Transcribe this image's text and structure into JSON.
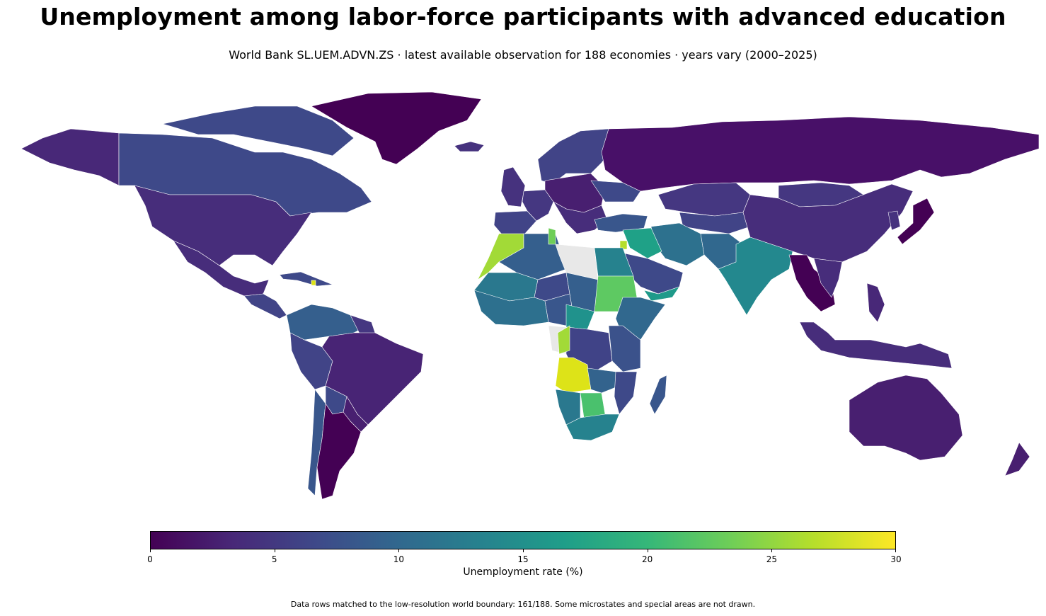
{
  "title": "Unemployment among labor-force participants with advanced education",
  "subtitle": "World Bank SL.UEM.ADVN.ZS · latest available observation for 188 economies · years vary (2000–2025)",
  "colorbar": {
    "label": "Unemployment rate (%)",
    "min": 0,
    "max": 30,
    "ticks": [
      "0",
      "5",
      "10",
      "15",
      "20",
      "25",
      "30"
    ],
    "tick_values": [
      0,
      5,
      10,
      15,
      20,
      25,
      30
    ],
    "colormap": [
      "#440154",
      "#482878",
      "#3e4989",
      "#31688e",
      "#26828e",
      "#1f9e89",
      "#35b779",
      "#6ece58",
      "#b5de2b",
      "#fde725"
    ]
  },
  "footnote": "Data rows matched to the low-resolution world boundary: 161/188. Some microstates and special areas are not drawn.",
  "colors": {
    "no_data": "#e6e6e6",
    "border": "#ffffff"
  }
}
